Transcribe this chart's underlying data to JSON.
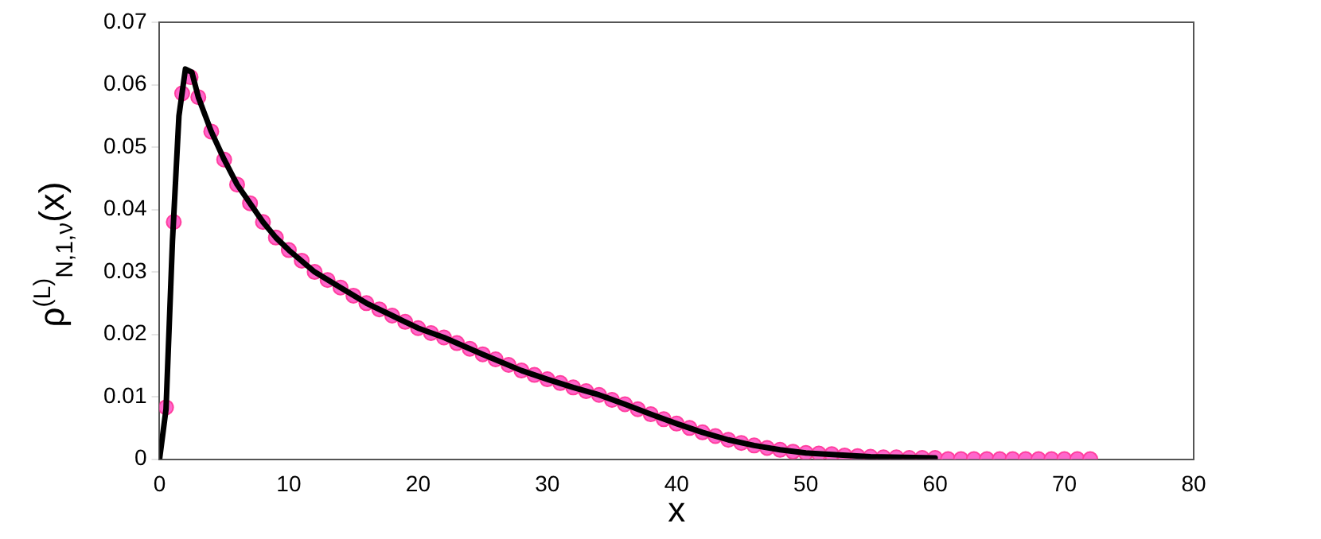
{
  "chart_data": {
    "type": "scatter",
    "xlabel": "x",
    "ylabel": "ρ$^{(L)}$$_{N,1,ν}$(x)",
    "xlim": [
      0,
      80
    ],
    "xticks": [
      0,
      10,
      20,
      30,
      40,
      50,
      60,
      70,
      80
    ],
    "ylim": [
      0,
      0.07
    ],
    "yticks": [
      0,
      0.01,
      0.02,
      0.03,
      0.04,
      0.05,
      0.06,
      0.07
    ],
    "grid": false,
    "legend": false,
    "series": [
      {
        "color": "#ff66cc",
        "marker": "circle",
        "x": [
          0.5,
          1.1,
          1.75,
          2.4,
          3,
          4,
          5,
          6,
          7,
          8,
          9,
          10,
          11,
          12,
          13,
          14,
          15,
          16,
          17,
          18,
          19,
          20,
          21,
          22,
          23,
          24,
          25,
          26,
          27,
          28,
          29,
          30,
          31,
          32,
          33,
          34,
          35,
          36,
          37,
          38,
          39,
          40,
          41,
          42,
          43,
          44,
          45,
          46,
          47,
          48,
          49,
          50,
          51,
          52,
          53,
          54,
          55,
          56,
          57,
          58,
          59,
          60,
          61,
          62,
          63,
          64,
          65,
          66,
          67,
          68,
          69,
          70,
          71,
          72
        ],
        "values": [
          0.0083,
          0.038,
          0.0586,
          0.0612,
          0.058,
          0.0525,
          0.048,
          0.044,
          0.041,
          0.038,
          0.0355,
          0.0335,
          0.0318,
          0.03,
          0.0287,
          0.0275,
          0.0262,
          0.025,
          0.024,
          0.023,
          0.022,
          0.021,
          0.0202,
          0.0195,
          0.0186,
          0.0177,
          0.0168,
          0.016,
          0.0151,
          0.0142,
          0.0135,
          0.0128,
          0.0122,
          0.0115,
          0.0109,
          0.0103,
          0.0095,
          0.0088,
          0.008,
          0.0072,
          0.0064,
          0.0057,
          0.005,
          0.0043,
          0.0037,
          0.0031,
          0.0026,
          0.0022,
          0.0018,
          0.0015,
          0.0012,
          0.001,
          0.0009,
          0.0008,
          0.0006,
          0.0005,
          0.0004,
          0.0003,
          0.0003,
          0.0002,
          0.0002,
          0.0002,
          0,
          0,
          0,
          0,
          0,
          0,
          0,
          0,
          0,
          0,
          0,
          0
        ]
      },
      {
        "type": "line",
        "color": "#000000",
        "marker": "none",
        "line_style": "solid",
        "x": [
          0,
          0.5,
          1,
          1.5,
          2,
          2.5,
          3,
          4,
          5,
          6,
          7,
          8,
          9,
          10,
          12,
          14,
          16,
          18,
          20,
          22,
          25,
          28,
          30,
          32,
          34,
          36,
          38,
          40,
          42,
          44,
          46,
          48,
          50,
          55,
          60
        ],
        "values": [
          0,
          0.008,
          0.035,
          0.055,
          0.0625,
          0.062,
          0.058,
          0.0525,
          0.048,
          0.044,
          0.041,
          0.038,
          0.0355,
          0.0335,
          0.03,
          0.0275,
          0.025,
          0.023,
          0.021,
          0.0195,
          0.0168,
          0.0142,
          0.0128,
          0.0115,
          0.0103,
          0.0088,
          0.0072,
          0.0057,
          0.0043,
          0.0031,
          0.0022,
          0.0015,
          0.001,
          0.0004,
          0.0002
        ]
      }
    ]
  }
}
